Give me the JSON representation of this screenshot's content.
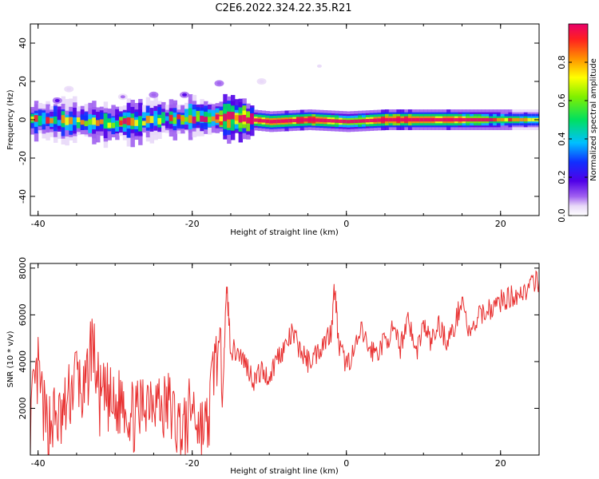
{
  "title": "C2E6.2022.324.22.35.R21",
  "colors": {
    "snr_line": "#e83030",
    "colormap": [
      "#ffffff",
      "#c8a6f0",
      "#7a1ee6",
      "#1020ff",
      "#00c8ff",
      "#00e060",
      "#ffff00",
      "#ff8000",
      "#e8003a"
    ]
  },
  "chart_data": [
    {
      "type": "heatmap",
      "title": "",
      "xlabel": "Height of straight line (km)",
      "ylabel": "Frequency (Hz)",
      "xlim": [
        -41,
        25
      ],
      "ylim": [
        -50,
        50
      ],
      "xticks": [
        -40,
        -20,
        0,
        20
      ],
      "yticks": [
        -40,
        -20,
        0,
        20,
        40
      ],
      "grid": false,
      "colorbar": {
        "label": "Normalized spectral amplitude",
        "range": [
          0,
          1
        ],
        "ticks": [
          0.0,
          0.2,
          0.4,
          0.6,
          0.8
        ],
        "tick_labels": [
          "0.0",
          "0.2",
          "0.4",
          "0.6",
          "0.8"
        ]
      },
      "ridge": {
        "description_x": [
          -41,
          -35,
          -30,
          -25,
          -20,
          -15,
          -10,
          -5,
          0,
          5,
          10,
          15,
          20,
          25
        ],
        "center_freq": [
          0,
          -1,
          -2,
          0,
          1,
          1,
          -1,
          0,
          -1,
          0,
          0,
          0,
          0,
          0
        ],
        "peak_amplitude": [
          0.45,
          0.4,
          0.55,
          0.4,
          0.5,
          0.85,
          0.85,
          0.95,
          0.7,
          0.95,
          0.9,
          0.85,
          0.55,
          0.45
        ]
      },
      "scatter_blobs": [
        {
          "x": -37.5,
          "y": 10,
          "amplitude": 0.2
        },
        {
          "x": -36,
          "y": 16,
          "amplitude": 0.08
        },
        {
          "x": -29,
          "y": 12,
          "amplitude": 0.12
        },
        {
          "x": -25,
          "y": 13,
          "amplitude": 0.15
        },
        {
          "x": -21,
          "y": 13,
          "amplitude": 0.22
        },
        {
          "x": -16.5,
          "y": 19,
          "amplitude": 0.15
        },
        {
          "x": -11,
          "y": 20,
          "amplitude": 0.08
        },
        {
          "x": -3.5,
          "y": 28,
          "amplitude": 0.06
        }
      ]
    },
    {
      "type": "line",
      "title": "",
      "xlabel": "Height of straight line (km)",
      "ylabel": "SNR (10 * v/v)",
      "xlim": [
        -41,
        25
      ],
      "ylim": [
        0,
        8200
      ],
      "xticks": [
        -40,
        -20,
        0,
        20
      ],
      "yticks": [
        2000,
        4000,
        6000,
        8000
      ],
      "grid": false,
      "series": [
        {
          "x": [
            -41,
            -40,
            -39,
            -38,
            -37,
            -36,
            -35,
            -34,
            -33,
            -32,
            -31,
            -30,
            -29,
            -28,
            -27,
            -26,
            -25,
            -24,
            -23,
            -22,
            -21,
            -20,
            -19,
            -18,
            -17,
            -16,
            -15.5,
            -15,
            -14,
            -13,
            -12,
            -11,
            -10,
            -9,
            -8,
            -7,
            -6,
            -5,
            -4,
            -3,
            -2,
            -1.5,
            -1,
            0,
            1,
            2,
            3,
            4,
            5,
            6,
            7,
            8,
            9,
            10,
            11,
            12,
            13,
            14,
            15,
            16,
            17,
            18,
            19,
            20,
            21,
            22,
            23,
            24,
            25
          ],
          "values": [
            1500,
            3500,
            1200,
            1600,
            1400,
            2400,
            3600,
            2200,
            5000,
            2300,
            2400,
            1800,
            2600,
            1700,
            1600,
            2500,
            2800,
            1900,
            2200,
            1300,
            1000,
            2200,
            1200,
            1100,
            4500,
            3500,
            7200,
            4500,
            4400,
            3900,
            3200,
            3600,
            3300,
            4200,
            4600,
            5200,
            4500,
            4000,
            4300,
            4800,
            5300,
            7300,
            4600,
            3900,
            4400,
            5300,
            4500,
            4400,
            4900,
            5300,
            4600,
            6000,
            4300,
            5600,
            4800,
            5600,
            4900,
            5400,
            6800,
            5000,
            5800,
            6200,
            6300,
            6600,
            6700,
            6900,
            7000,
            7200,
            7500
          ]
        }
      ]
    }
  ]
}
